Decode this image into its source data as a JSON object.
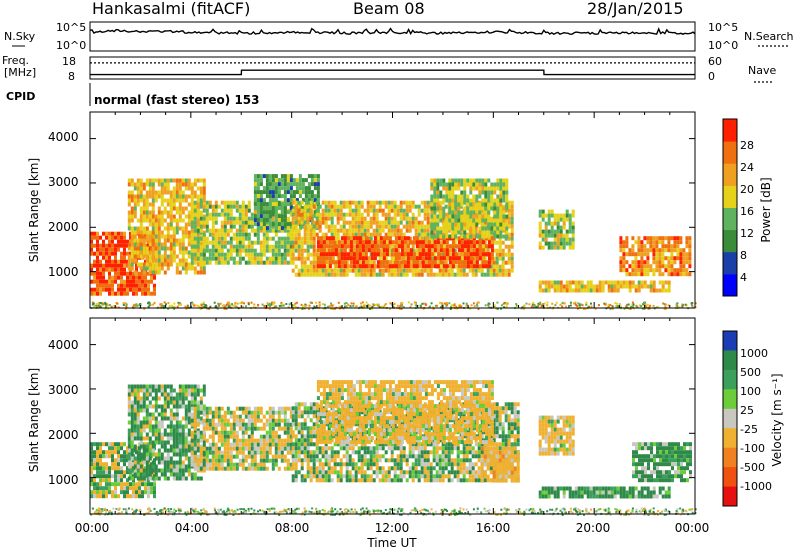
{
  "header": {
    "station": "Hankasalmi (fitACF)",
    "beam": "Beam 08",
    "date": "28/Jan/2015"
  },
  "nsky_panel": {
    "left_label": "N.Sky",
    "right_label": "N.Search",
    "left_ticks": [
      "10^5",
      "10^0"
    ],
    "right_ticks": [
      "10^5",
      "10^0"
    ]
  },
  "freq_panel": {
    "left_label_1": "Freq.",
    "left_label_2": "[MHz]",
    "right_label": "Nave",
    "left_ticks": [
      "18",
      "8"
    ],
    "right_ticks": [
      "60",
      "0"
    ]
  },
  "cpid_panel": {
    "label": "CPID",
    "text": "normal (fast stereo) 153"
  },
  "power_panel": {
    "ylabel": "Slant Range [km]",
    "yticks": [
      "4000",
      "3000",
      "2000",
      "1000"
    ],
    "colorbar_label": "Power [dB]",
    "colorbar_ticks": [
      "28",
      "24",
      "20",
      "16",
      "12",
      "8",
      "4"
    ],
    "colors": [
      "#0000ff",
      "#1b3fa8",
      "#3a8c3a",
      "#5fb35f",
      "#e6d21a",
      "#f0a020",
      "#f07010",
      "#ff2000"
    ]
  },
  "velocity_panel": {
    "ylabel": "Slant Range [km]",
    "yticks": [
      "4000",
      "3000",
      "2000",
      "1000"
    ],
    "colorbar_label": "Velocity [m s⁻¹]",
    "colorbar_ticks": [
      "1000",
      "500",
      "100",
      "25",
      "-25",
      "-100",
      "-500",
      "-1000"
    ],
    "colors": [
      "#1a3cb4",
      "#2f8a4a",
      "#3aa05a",
      "#6dcc3a",
      "#c8c8c0",
      "#f0b030",
      "#f08020",
      "#f05010",
      "#e61010"
    ]
  },
  "xaxis": {
    "label": "Time UT",
    "ticks": [
      "00:00",
      "04:00",
      "08:00",
      "12:00",
      "16:00",
      "20:00",
      "00:00"
    ]
  },
  "chart_data": [
    {
      "type": "line",
      "title": "N.Sky / N.Search",
      "x_hours": [
        0,
        1,
        2,
        3,
        4,
        6,
        8,
        10,
        12,
        14,
        16,
        18,
        20,
        22,
        24
      ],
      "series": [
        {
          "name": "N.Sky",
          "values": [
            1000,
            8000,
            4000,
            6000,
            3000,
            2000,
            3000,
            2000,
            3000,
            2000,
            4000,
            2000,
            2000,
            2000,
            2000
          ]
        }
      ]
    },
    {
      "type": "line",
      "title": "Freq. / Nave",
      "x_hours": [
        0,
        6,
        6.01,
        18,
        18.01,
        24
      ],
      "series": [
        {
          "name": "Freq.",
          "values": [
            10,
            10,
            12,
            12,
            10,
            10
          ]
        },
        {
          "name": "Nave",
          "values": [
            44,
            44,
            44,
            44,
            44,
            44
          ]
        }
      ]
    },
    {
      "type": "heatmap",
      "title": "Power",
      "xlabel": "Time UT",
      "ylabel": "Slant Range [km]",
      "xlim_hours": [
        0,
        24
      ],
      "ylim_km": [
        180,
        4600
      ],
      "cblim_db": [
        0,
        32
      ],
      "regions": [
        {
          "t": [
            0.0,
            2.6
          ],
          "r": [
            500,
            1900
          ],
          "value": 28
        },
        {
          "t": [
            1.5,
            4.5
          ],
          "r": [
            1000,
            3100
          ],
          "value": 20
        },
        {
          "t": [
            4.0,
            8.0
          ],
          "r": [
            1200,
            2600
          ],
          "value": 16
        },
        {
          "t": [
            6.5,
            9.0
          ],
          "r": [
            2000,
            3200
          ],
          "value": 12
        },
        {
          "t": [
            8.0,
            16.8
          ],
          "r": [
            900,
            2600
          ],
          "value": 20
        },
        {
          "t": [
            9.0,
            16.0
          ],
          "r": [
            1100,
            1800
          ],
          "value": 28
        },
        {
          "t": [
            13.5,
            16.5
          ],
          "r": [
            1800,
            3100
          ],
          "value": 16
        },
        {
          "t": [
            17.8,
            19.2
          ],
          "r": [
            1500,
            2400
          ],
          "value": 16
        },
        {
          "t": [
            17.8,
            23.0
          ],
          "r": [
            550,
            800
          ],
          "value": 20
        },
        {
          "t": [
            21.0,
            23.8
          ],
          "r": [
            900,
            1800
          ],
          "value": 24
        }
      ]
    },
    {
      "type": "heatmap",
      "title": "Velocity",
      "xlabel": "Time UT",
      "ylabel": "Slant Range [km]",
      "xlim_hours": [
        0,
        24
      ],
      "ylim_km": [
        180,
        4600
      ],
      "cblim_ms": [
        -1000,
        1000
      ],
      "regions": [
        {
          "t": [
            0.0,
            2.6
          ],
          "r": [
            600,
            1800
          ],
          "value": 0
        },
        {
          "t": [
            1.5,
            4.5
          ],
          "r": [
            1000,
            3100
          ],
          "value": 100
        },
        {
          "t": [
            4.0,
            8.0
          ],
          "r": [
            1200,
            2600
          ],
          "value": -100
        },
        {
          "t": [
            8.0,
            17.0
          ],
          "r": [
            900,
            2700
          ],
          "value": 0
        },
        {
          "t": [
            9.0,
            16.0
          ],
          "r": [
            1800,
            3200
          ],
          "value": -200
        },
        {
          "t": [
            15.5,
            17.0
          ],
          "r": [
            900,
            1700
          ],
          "value": -300
        },
        {
          "t": [
            17.8,
            19.2
          ],
          "r": [
            1500,
            2400
          ],
          "value": -200
        },
        {
          "t": [
            17.8,
            23.0
          ],
          "r": [
            550,
            800
          ],
          "value": 150
        },
        {
          "t": [
            21.5,
            23.8
          ],
          "r": [
            900,
            1800
          ],
          "value": 150
        }
      ]
    }
  ]
}
